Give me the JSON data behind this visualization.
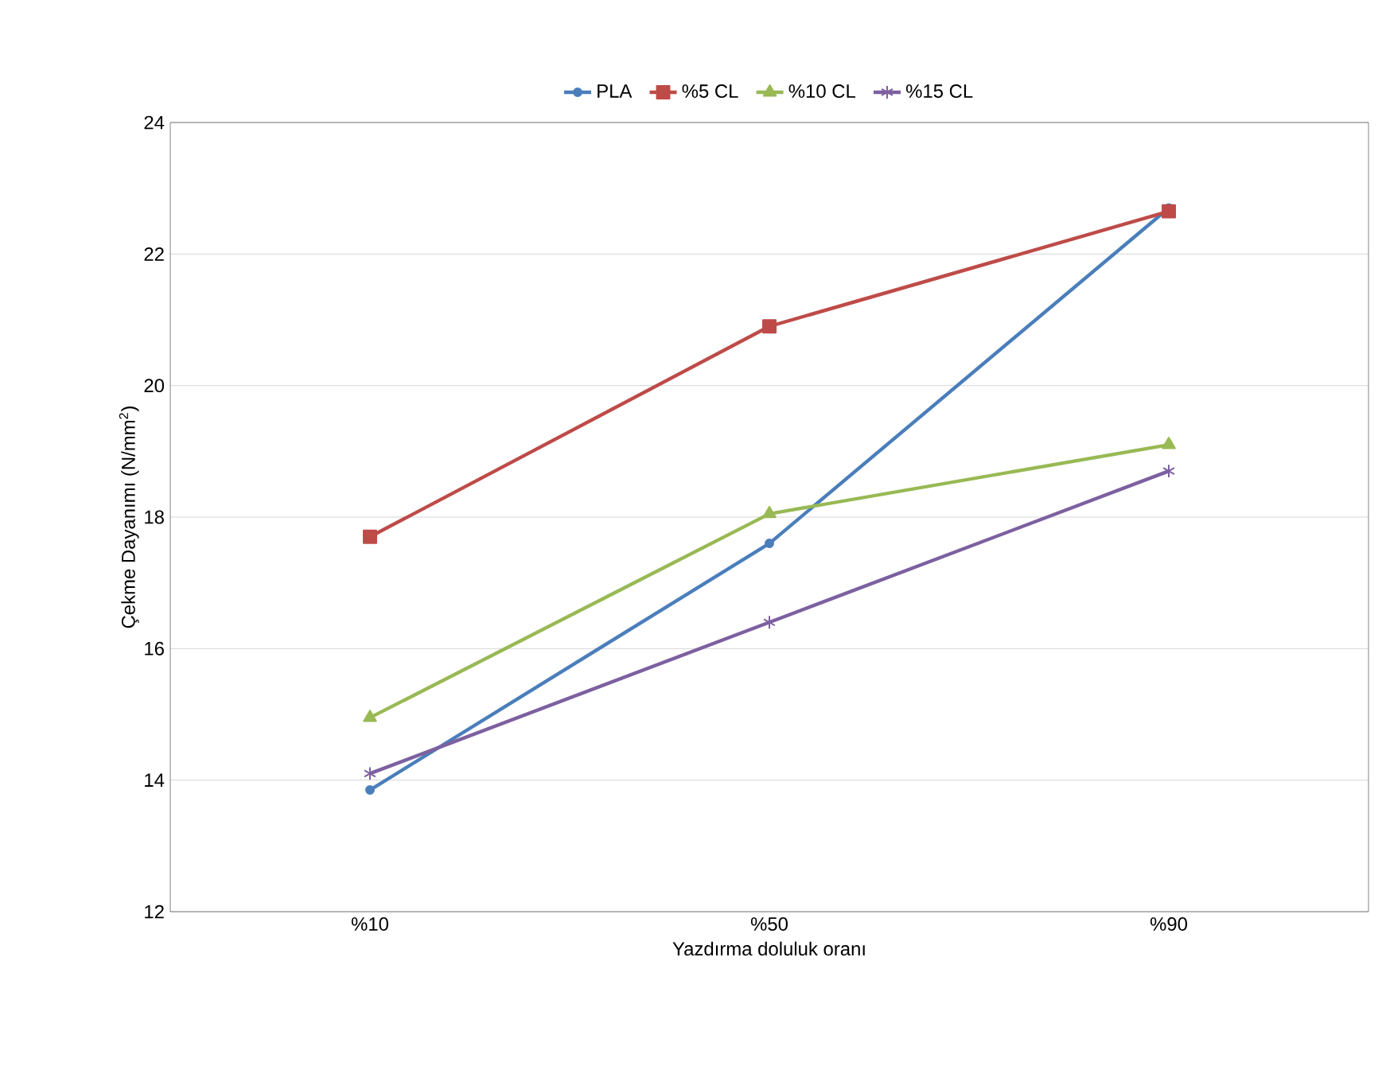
{
  "chart_data": {
    "type": "line",
    "xlabel": "Yazdırma doluluk oranı",
    "ylabel": "Çekme Dayanımı (N/mm$^{2}$)",
    "categories": [
      "%10",
      "%50",
      "%90"
    ],
    "series": [
      {
        "name": "PLA",
        "color": "#4a7ebb",
        "marker": "circle",
        "values": [
          13.85,
          17.6,
          22.7
        ]
      },
      {
        "name": "%5 CL",
        "color": "#be4b48",
        "marker": "square",
        "values": [
          17.7,
          20.9,
          22.65
        ]
      },
      {
        "name": "%10 CL",
        "color": "#98b954",
        "marker": "triangle",
        "values": [
          14.95,
          18.05,
          19.1
        ]
      },
      {
        "name": "%15 CL",
        "color": "#7d60a0",
        "marker": "cross",
        "values": [
          14.1,
          16.4,
          18.7
        ]
      }
    ],
    "ylim": [
      12,
      24
    ],
    "yticks": [
      12,
      14,
      16,
      18,
      20,
      22,
      24
    ],
    "grid": "y",
    "legend": "top",
    "line_style": "solid"
  }
}
